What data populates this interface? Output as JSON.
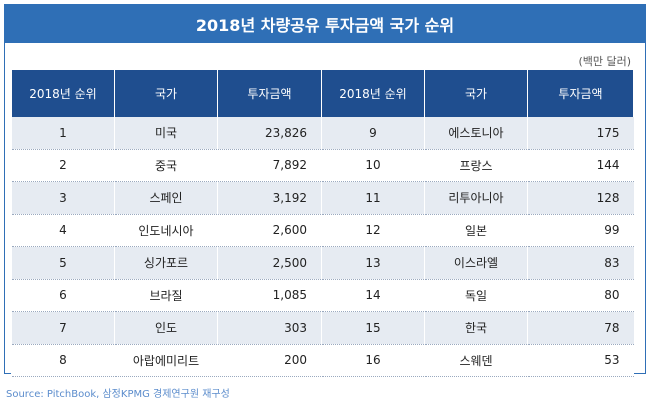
{
  "title": "2018년 차량공유 투자금액 국가 순위",
  "unit": "(백만 달러)",
  "headers": [
    "2018년 순위",
    "국가",
    "투자금액",
    "2018년 순위",
    "국가",
    "투자금액"
  ],
  "rows": [
    [
      "1",
      "미국",
      "23,826",
      "9",
      "에스토니아",
      "175"
    ],
    [
      "2",
      "중국",
      "7,892",
      "10",
      "프랑스",
      "144"
    ],
    [
      "3",
      "스페인",
      "3,192",
      "11",
      "리투아니아",
      "128"
    ],
    [
      "4",
      "인도네시아",
      "2,600",
      "12",
      "일본",
      "99"
    ],
    [
      "5",
      "싱가포르",
      "2,500",
      "13",
      "이스라엘",
      "83"
    ],
    [
      "6",
      "브라질",
      "1,085",
      "14",
      "독일",
      "80"
    ],
    [
      "7",
      "인도",
      "303",
      "15",
      "한국",
      "78"
    ],
    [
      "8",
      "아랍에미리트",
      "200",
      "16",
      "스웨덴",
      "53"
    ]
  ],
  "source": "Source: PitchBook, 삼정KPMG 경제연구원 재구성"
}
